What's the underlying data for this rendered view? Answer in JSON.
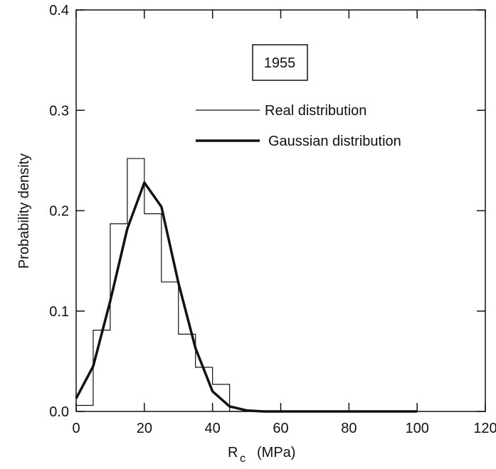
{
  "chart_data": {
    "type": "line",
    "annotation": "1955",
    "xlabel_main": "R",
    "xlabel_sub": "c",
    "xlabel_unit": "(MPa)",
    "ylabel": "Probability density",
    "xlim": [
      0,
      120
    ],
    "ylim": [
      0,
      0.4
    ],
    "x_ticks": [
      0,
      20,
      40,
      60,
      80,
      100,
      120
    ],
    "y_ticks": [
      0.0,
      0.1,
      0.2,
      0.3,
      0.4
    ],
    "x_tick_labels": [
      "0",
      "20",
      "40",
      "60",
      "80",
      "100",
      "120"
    ],
    "y_tick_labels": [
      "0.0",
      "0.1",
      "0.2",
      "0.3",
      "0.4"
    ],
    "grid": false,
    "legend_position": "top-right",
    "series": [
      {
        "name": "Real distribution",
        "style": "step",
        "bins": [
          {
            "x0": 0,
            "x1": 5,
            "y": 0.006
          },
          {
            "x0": 5,
            "x1": 10,
            "y": 0.081
          },
          {
            "x0": 10,
            "x1": 15,
            "y": 0.187
          },
          {
            "x0": 15,
            "x1": 20,
            "y": 0.252
          },
          {
            "x0": 20,
            "x1": 25,
            "y": 0.197
          },
          {
            "x0": 25,
            "x1": 30,
            "y": 0.129
          },
          {
            "x0": 30,
            "x1": 35,
            "y": 0.077
          },
          {
            "x0": 35,
            "x1": 40,
            "y": 0.044
          },
          {
            "x0": 40,
            "x1": 45,
            "y": 0.027
          },
          {
            "x0": 45,
            "x1": 50,
            "y": 0.0
          }
        ]
      },
      {
        "name": "Gaussian distribution",
        "style": "line",
        "x": [
          0,
          5,
          10,
          15,
          20,
          25,
          30,
          35,
          40,
          45,
          50,
          55,
          60,
          70,
          80,
          90,
          100
        ],
        "y": [
          0.013,
          0.045,
          0.11,
          0.182,
          0.228,
          0.204,
          0.128,
          0.063,
          0.02,
          0.005,
          0.001,
          0.0,
          0.0,
          0.0,
          0.0,
          0.0,
          0.0
        ]
      }
    ]
  }
}
